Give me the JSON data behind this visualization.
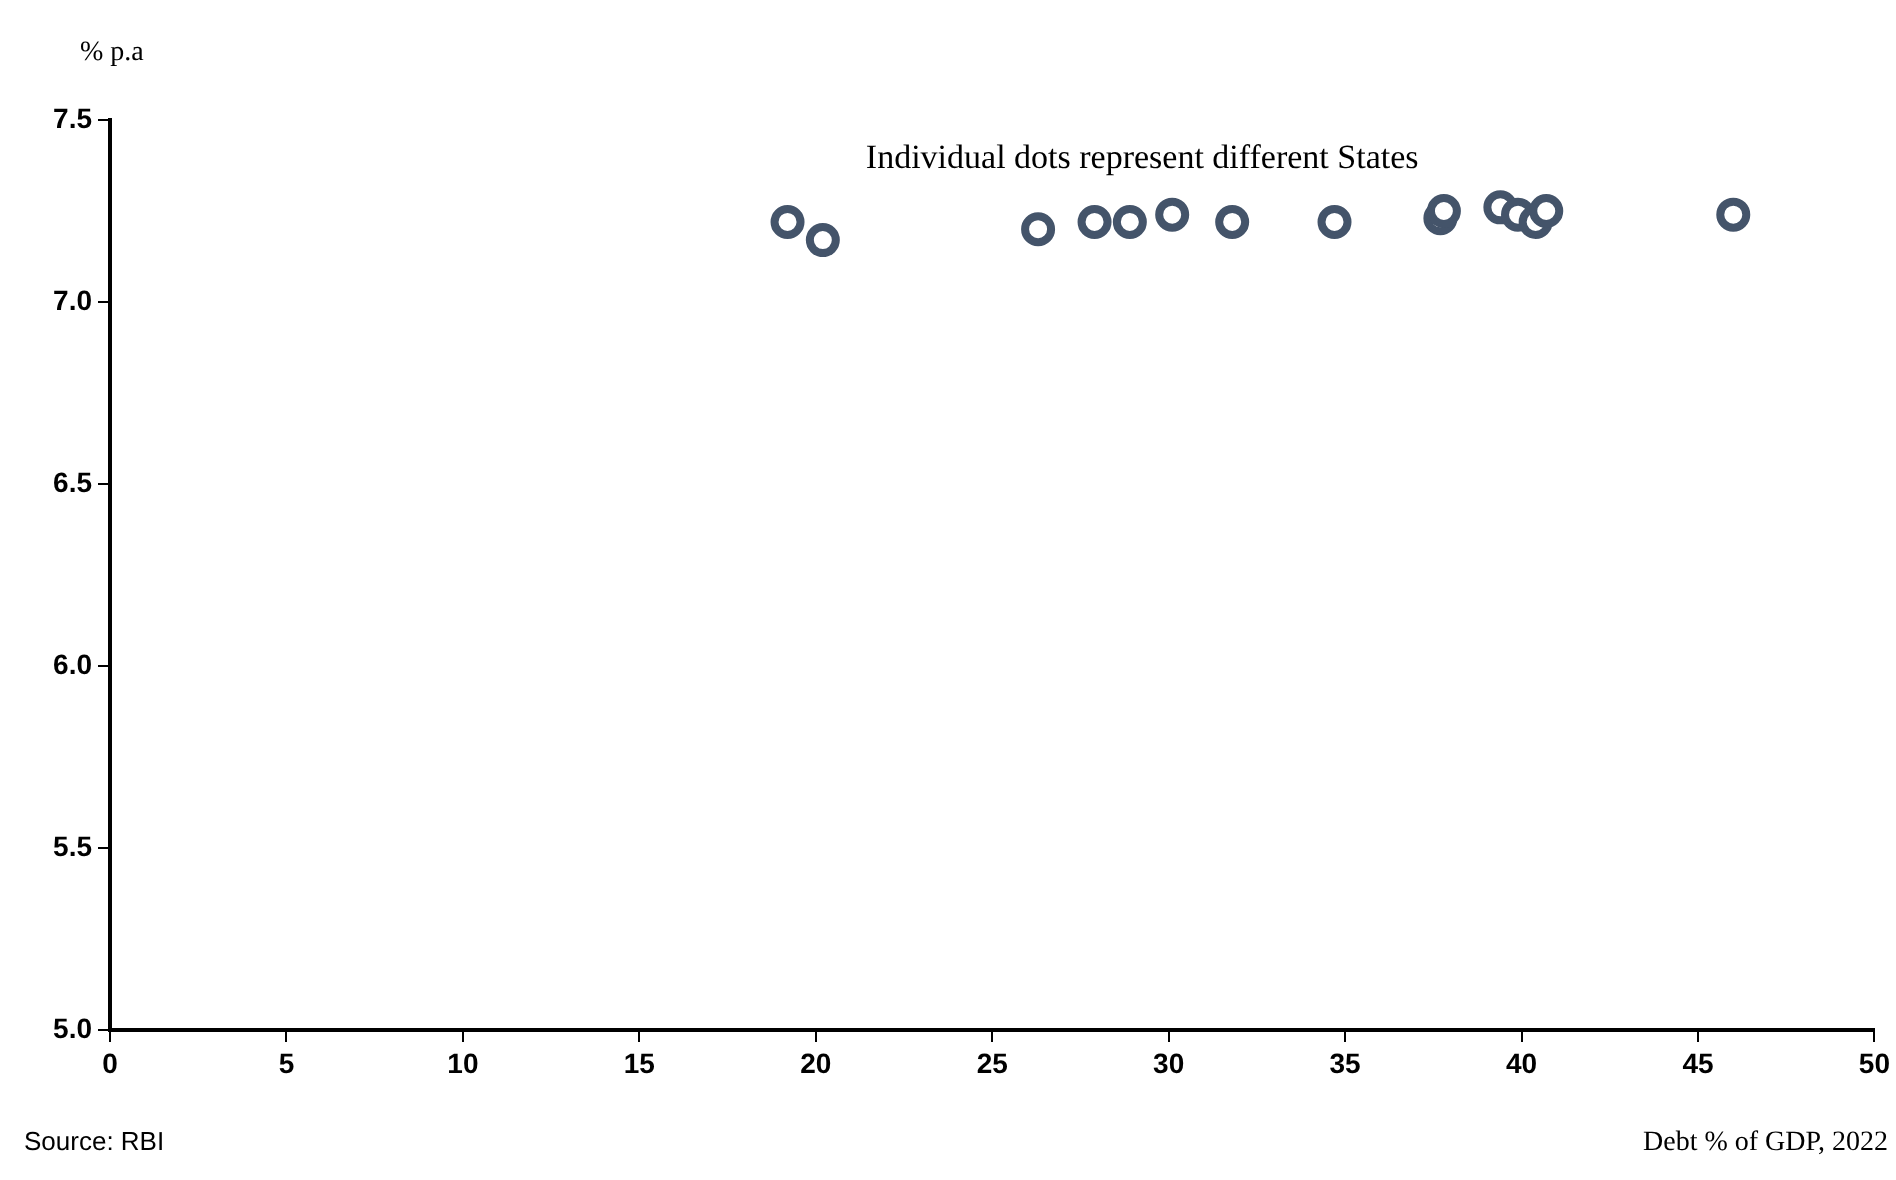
{
  "chart_data": {
    "type": "scatter",
    "title": "Individual dots represent different States",
    "ylabel": "% p.a",
    "xlabel": "Debt % of GDP, 2022",
    "annotations": [
      "Source: RBI"
    ],
    "x": [
      19.2,
      20.2,
      26.3,
      27.9,
      28.9,
      30.1,
      31.8,
      34.7,
      37.7,
      37.8,
      39.4,
      39.9,
      40.4,
      40.7,
      46.0
    ],
    "series": [
      {
        "color": "#44546a",
        "values": [
          7.22,
          7.17,
          7.2,
          7.22,
          7.22,
          7.24,
          7.22,
          7.22,
          7.23,
          7.25,
          7.26,
          7.24,
          7.22,
          7.25,
          7.24
        ]
      }
    ],
    "xlim": [
      0,
      50
    ],
    "xticks": [
      0,
      5,
      10,
      15,
      20,
      25,
      30,
      35,
      40,
      45,
      50
    ],
    "ylim": [
      5.0,
      7.5
    ],
    "yticks": [
      {
        "value": 5,
        "label": "5.0"
      },
      5.5,
      {
        "value": 6,
        "label": "6.0"
      },
      6.5,
      {
        "value": 7,
        "label": "7.0"
      },
      7.5
    ],
    "grid": false,
    "legend": false,
    "marker": "circle"
  }
}
